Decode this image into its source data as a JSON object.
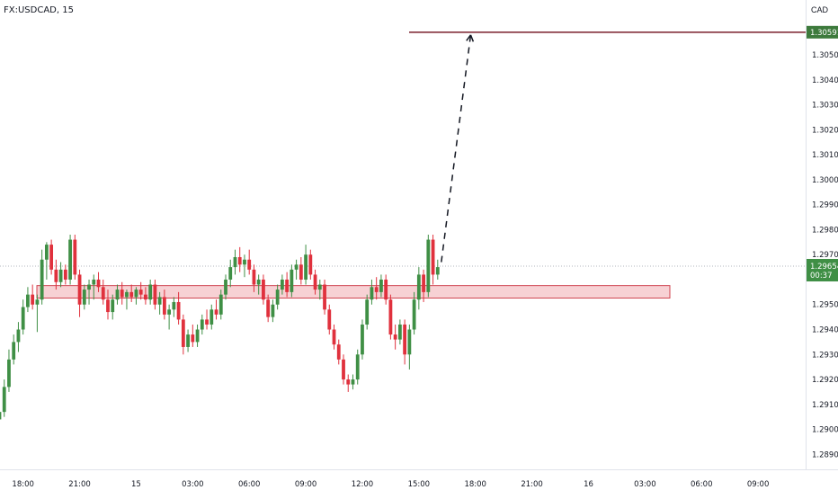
{
  "header": {
    "symbol": "FX:USDCAD, 15",
    "currency": "CAD"
  },
  "colors": {
    "up": "#3f8f45",
    "down": "#e0313d",
    "zone_fill": "#f6c9cd",
    "zone_stroke": "#d04451",
    "target_line": "#7a1f2b",
    "target_badge": "#3d7a3c",
    "price_badge": "#3f8f45",
    "axis_text": "#131722",
    "current_line": "#b2b5be"
  },
  "chart_data": {
    "type": "candlestick",
    "y_ticks": [
      "1.30600",
      "1.30500",
      "1.30400",
      "1.30300",
      "1.30200",
      "1.30100",
      "1.30000",
      "1.29900",
      "1.29800",
      "1.29700",
      "1.29500",
      "1.29400",
      "1.29300",
      "1.29200",
      "1.29100",
      "1.29000",
      "1.28900"
    ],
    "y_tick_values": [
      1.306,
      1.305,
      1.304,
      1.303,
      1.302,
      1.301,
      1.3,
      1.299,
      1.298,
      1.297,
      1.295,
      1.294,
      1.293,
      1.292,
      1.291,
      1.29,
      1.289
    ],
    "ylim": [
      1.2884,
      1.3072
    ],
    "x_ticks": [
      "18:00",
      "21:00",
      "15",
      "03:00",
      "06:00",
      "09:00",
      "12:00",
      "15:00",
      "18:00",
      "21:00",
      "16",
      "03:00",
      "06:00",
      "09:00"
    ],
    "bars_per_x_tick": 12,
    "bars_before_first_tick": 7,
    "target_price": {
      "label": "1.30591",
      "value": 1.30591
    },
    "current_price": {
      "label": "1.29654",
      "countdown": "00:37",
      "value": 1.29654
    },
    "resistance_zone": {
      "low": 1.29526,
      "high": 1.29576
    },
    "projection": {
      "from_value": 1.2967,
      "to_value": 1.3058,
      "bars_ahead": 7
    },
    "candles": [
      [
        1.2918,
        1.2924,
        1.2908,
        1.2912
      ],
      [
        1.2912,
        1.2916,
        1.2902,
        1.2904
      ],
      [
        1.2904,
        1.291,
        1.2899,
        1.2907
      ],
      [
        1.2907,
        1.292,
        1.2905,
        1.2917
      ],
      [
        1.2917,
        1.2932,
        1.2915,
        1.2928
      ],
      [
        1.2928,
        1.2938,
        1.2926,
        1.2935
      ],
      [
        1.2935,
        1.2943,
        1.2931,
        1.294
      ],
      [
        1.294,
        1.2952,
        1.2938,
        1.2949
      ],
      [
        1.2949,
        1.2957,
        1.2947,
        1.2954
      ],
      [
        1.2954,
        1.2958,
        1.2948,
        1.295
      ],
      [
        1.295,
        1.2954,
        1.2939,
        1.2952
      ],
      [
        1.2952,
        1.2972,
        1.295,
        1.2968
      ],
      [
        1.2968,
        1.2975,
        1.296,
        1.2974
      ],
      [
        1.2974,
        1.2976,
        1.2962,
        1.2964
      ],
      [
        1.2964,
        1.2968,
        1.2956,
        1.2959
      ],
      [
        1.2959,
        1.2967,
        1.2957,
        1.2964
      ],
      [
        1.2964,
        1.2966,
        1.2958,
        1.296
      ],
      [
        1.296,
        1.2978,
        1.2958,
        1.2976
      ],
      [
        1.2976,
        1.2978,
        1.296,
        1.2962
      ],
      [
        1.2962,
        1.2964,
        1.2945,
        1.295
      ],
      [
        1.295,
        1.2958,
        1.2948,
        1.2956
      ],
      [
        1.2956,
        1.296,
        1.295,
        1.2958
      ],
      [
        1.2958,
        1.2962,
        1.2952,
        1.296
      ],
      [
        1.296,
        1.2963,
        1.2955,
        1.2957
      ],
      [
        1.2957,
        1.296,
        1.295,
        1.2952
      ],
      [
        1.2952,
        1.2956,
        1.2944,
        1.2947
      ],
      [
        1.2947,
        1.2954,
        1.2944,
        1.2952
      ],
      [
        1.2952,
        1.2958,
        1.295,
        1.2956
      ],
      [
        1.2956,
        1.2959,
        1.295,
        1.2953
      ],
      [
        1.2953,
        1.2956,
        1.2948,
        1.2955
      ],
      [
        1.2955,
        1.2958,
        1.2951,
        1.2953
      ],
      [
        1.2953,
        1.2957,
        1.295,
        1.2956
      ],
      [
        1.2956,
        1.2959,
        1.2952,
        1.2954
      ],
      [
        1.2954,
        1.2957,
        1.295,
        1.2952
      ],
      [
        1.2952,
        1.296,
        1.295,
        1.2958
      ],
      [
        1.2958,
        1.296,
        1.2948,
        1.295
      ],
      [
        1.295,
        1.2955,
        1.2946,
        1.2953
      ],
      [
        1.2953,
        1.2956,
        1.2944,
        1.2946
      ],
      [
        1.2946,
        1.295,
        1.294,
        1.2948
      ],
      [
        1.2948,
        1.2953,
        1.2945,
        1.2951
      ],
      [
        1.2951,
        1.2955,
        1.2942,
        1.2944
      ],
      [
        1.2944,
        1.2946,
        1.293,
        1.2933
      ],
      [
        1.2933,
        1.294,
        1.2931,
        1.2938
      ],
      [
        1.2938,
        1.2942,
        1.2933,
        1.2935
      ],
      [
        1.2935,
        1.2942,
        1.2933,
        1.294
      ],
      [
        1.294,
        1.2946,
        1.2938,
        1.2944
      ],
      [
        1.2944,
        1.2948,
        1.294,
        1.2942
      ],
      [
        1.2942,
        1.295,
        1.294,
        1.2948
      ],
      [
        1.2948,
        1.2952,
        1.2944,
        1.2946
      ],
      [
        1.2946,
        1.2956,
        1.2944,
        1.2954
      ],
      [
        1.2954,
        1.2962,
        1.2952,
        1.296
      ],
      [
        1.296,
        1.2968,
        1.2957,
        1.2965
      ],
      [
        1.2965,
        1.2972,
        1.2962,
        1.2969
      ],
      [
        1.2969,
        1.2973,
        1.2963,
        1.2966
      ],
      [
        1.2966,
        1.297,
        1.2961,
        1.2968
      ],
      [
        1.2968,
        1.2972,
        1.2962,
        1.2964
      ],
      [
        1.2964,
        1.2966,
        1.2955,
        1.2958
      ],
      [
        1.2958,
        1.2962,
        1.2954,
        1.296
      ],
      [
        1.296,
        1.2962,
        1.295,
        1.2952
      ],
      [
        1.2952,
        1.2954,
        1.2943,
        1.2945
      ],
      [
        1.2945,
        1.2952,
        1.2943,
        1.295
      ],
      [
        1.295,
        1.2958,
        1.2948,
        1.2956
      ],
      [
        1.2956,
        1.2962,
        1.2954,
        1.296
      ],
      [
        1.296,
        1.2963,
        1.2953,
        1.2955
      ],
      [
        1.2955,
        1.2966,
        1.2953,
        1.2964
      ],
      [
        1.2964,
        1.2968,
        1.296,
        1.2966
      ],
      [
        1.2966,
        1.2969,
        1.2958,
        1.296
      ],
      [
        1.296,
        1.2974,
        1.2958,
        1.297
      ],
      [
        1.297,
        1.2972,
        1.296,
        1.2962
      ],
      [
        1.2962,
        1.2964,
        1.2954,
        1.2956
      ],
      [
        1.2956,
        1.296,
        1.2952,
        1.2958
      ],
      [
        1.2958,
        1.296,
        1.2946,
        1.2948
      ],
      [
        1.2948,
        1.295,
        1.2938,
        1.294
      ],
      [
        1.294,
        1.2942,
        1.2932,
        1.2934
      ],
      [
        1.2934,
        1.2936,
        1.2926,
        1.2928
      ],
      [
        1.2928,
        1.293,
        1.2918,
        1.292
      ],
      [
        1.292,
        1.2922,
        1.2915,
        1.2918
      ],
      [
        1.2918,
        1.2922,
        1.2916,
        1.292
      ],
      [
        1.292,
        1.2932,
        1.2918,
        1.293
      ],
      [
        1.293,
        1.2944,
        1.2928,
        1.2942
      ],
      [
        1.2942,
        1.2954,
        1.294,
        1.2952
      ],
      [
        1.2952,
        1.296,
        1.295,
        1.2957
      ],
      [
        1.2957,
        1.2961,
        1.2952,
        1.2955
      ],
      [
        1.2955,
        1.2962,
        1.2953,
        1.296
      ],
      [
        1.296,
        1.2962,
        1.295,
        1.2952
      ],
      [
        1.2952,
        1.2954,
        1.2936,
        1.2938
      ],
      [
        1.2938,
        1.2942,
        1.2932,
        1.2936
      ],
      [
        1.2936,
        1.2944,
        1.2934,
        1.2942
      ],
      [
        1.2942,
        1.2944,
        1.2926,
        1.293
      ],
      [
        1.293,
        1.2942,
        1.2924,
        1.294
      ],
      [
        1.294,
        1.2955,
        1.2938,
        1.2952
      ],
      [
        1.2952,
        1.2965,
        1.2948,
        1.2962
      ],
      [
        1.2962,
        1.2964,
        1.2951,
        1.2955
      ],
      [
        1.2955,
        1.2978,
        1.2953,
        1.2976
      ],
      [
        1.2976,
        1.2978,
        1.2958,
        1.2962
      ],
      [
        1.2962,
        1.2968,
        1.296,
        1.2965
      ]
    ]
  }
}
